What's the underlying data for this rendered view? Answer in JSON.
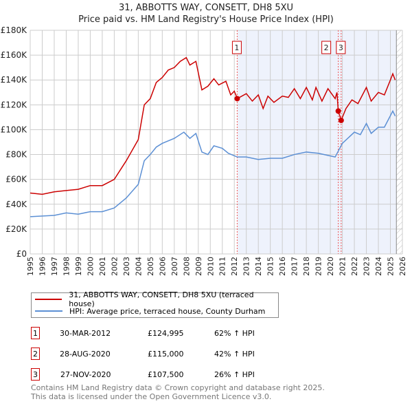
{
  "chart_data": {
    "type": "line",
    "title": "31, ABBOTTS WAY, CONSETT, DH8 5XU",
    "subtitle": "Price paid vs. HM Land Registry's House Price Index (HPI)",
    "xlim": [
      1995,
      2026
    ],
    "ylim": [
      0,
      180000
    ],
    "x_ticks": [
      "1995",
      "1996",
      "1997",
      "1998",
      "1999",
      "2000",
      "2001",
      "2002",
      "2003",
      "2004",
      "2005",
      "2006",
      "2007",
      "2008",
      "2009",
      "2010",
      "2011",
      "2012",
      "2013",
      "2014",
      "2015",
      "2016",
      "2017",
      "2018",
      "2019",
      "2020",
      "2021",
      "2022",
      "2023",
      "2024",
      "2025",
      "2026"
    ],
    "y_ticks": [
      {
        "v": 0,
        "label": "£0"
      },
      {
        "v": 20000,
        "label": "£20K"
      },
      {
        "v": 40000,
        "label": "£40K"
      },
      {
        "v": 60000,
        "label": "£60K"
      },
      {
        "v": 80000,
        "label": "£80K"
      },
      {
        "v": 100000,
        "label": "£100K"
      },
      {
        "v": 120000,
        "label": "£120K"
      },
      {
        "v": 140000,
        "label": "£140K"
      },
      {
        "v": 160000,
        "label": "£160K"
      },
      {
        "v": 180000,
        "label": "£180K"
      }
    ],
    "grid": true,
    "shaded_range": [
      2012.25,
      2025.5
    ],
    "hatched_range": [
      2025.5,
      2026
    ],
    "series": [
      {
        "name": "31, ABBOTTS WAY, CONSETT, DH8 5XU (terraced house)",
        "color": "#cc0000",
        "x": [
          1995,
          1996,
          1997,
          1998,
          1999,
          2000,
          2001,
          2002,
          2003,
          2004,
          2004.5,
          2005,
          2005.5,
          2006,
          2006.5,
          2007,
          2007.5,
          2008,
          2008.3,
          2008.8,
          2009.3,
          2009.8,
          2010.3,
          2010.7,
          2011.3,
          2011.7,
          2012,
          2012.25,
          2013,
          2013.5,
          2014,
          2014.4,
          2014.8,
          2015.3,
          2016,
          2016.5,
          2017,
          2017.5,
          2018,
          2018.5,
          2018.8,
          2019.3,
          2019.8,
          2020.4,
          2020.55,
          2020.66,
          2020.9,
          2021.3,
          2021.8,
          2022.3,
          2023,
          2023.4,
          2024,
          2024.5,
          2025,
          2025.2,
          2025.4
        ],
        "y": [
          49000,
          48000,
          50000,
          51000,
          52000,
          55000,
          55000,
          60000,
          75000,
          92000,
          120000,
          125000,
          138000,
          142000,
          148000,
          150000,
          155000,
          158000,
          152000,
          155000,
          132000,
          135000,
          141000,
          136000,
          139000,
          128000,
          131000,
          125000,
          129000,
          123000,
          128000,
          117000,
          127000,
          122000,
          127000,
          126000,
          133000,
          125000,
          134000,
          124000,
          134000,
          123000,
          133000,
          125000,
          130000,
          115000,
          107500,
          117000,
          124000,
          121000,
          134000,
          123000,
          130000,
          128000,
          140000,
          145000,
          140000
        ]
      },
      {
        "name": "HPI: Average price, terraced house, County Durham",
        "color": "#5b8fd4",
        "x": [
          1995,
          1997,
          1998,
          1999,
          2000,
          2001,
          2002,
          2003,
          2004,
          2004.5,
          2005,
          2005.5,
          2006,
          2007,
          2007.8,
          2008.3,
          2008.8,
          2009.3,
          2009.8,
          2010.3,
          2011,
          2011.5,
          2012.25,
          2013,
          2014,
          2015,
          2016,
          2017,
          2018,
          2019,
          2020.4,
          2021,
          2022,
          2022.5,
          2023,
          2023.4,
          2024,
          2024.5,
          2025.2,
          2025.4
        ],
        "y": [
          30000,
          31000,
          33000,
          32000,
          34000,
          34000,
          37000,
          45000,
          56000,
          75000,
          80000,
          86000,
          89000,
          93000,
          98000,
          93000,
          97000,
          82000,
          80000,
          87000,
          85000,
          81000,
          78000,
          78000,
          76000,
          77000,
          77000,
          80000,
          82000,
          81000,
          78000,
          89000,
          98000,
          96000,
          105000,
          97000,
          102000,
          102000,
          115000,
          111000
        ]
      }
    ],
    "sales": [
      {
        "id": "1",
        "x": 2012.24,
        "y": 124995,
        "date": "30-MAR-2012",
        "price": "£124,995",
        "hpi": "62% ↑ HPI"
      },
      {
        "id": "2",
        "x": 2020.66,
        "y": 115000,
        "date": "28-AUG-2020",
        "price": "£115,000",
        "hpi": "42% ↑ HPI"
      },
      {
        "id": "3",
        "x": 2020.9,
        "y": 107500,
        "date": "27-NOV-2020",
        "price": "£107,500",
        "hpi": "26% ↑ HPI"
      }
    ]
  },
  "footer": [
    "Contains HM Land Registry data © Crown copyright and database right 2025.",
    "This data is licensed under the Open Government Licence v3.0."
  ]
}
